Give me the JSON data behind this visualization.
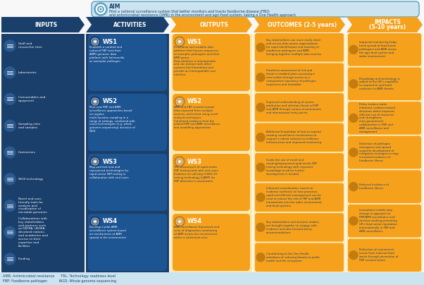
{
  "aim_text_line1": "Pilot a national surveillance system that better monitors and tracks foodborne disease (FBD)",
  "aim_text_line2": "and antimicrobial resistance (AMR) in the environment and agri-food system, taking a One Health approach",
  "col_titles": [
    "INPUTS",
    "ACTIVITIES",
    "OUTPUTS",
    "OUTCOMES (2-5 years)",
    "IMPACTS\n(5-10 years)"
  ],
  "col_colors_header": [
    "#1b3f6b",
    "#1b3f6b",
    "#f5a11c",
    "#f5a11c",
    "#f5a11c"
  ],
  "col_bg_colors": [
    "#1b3f6b",
    "#1b3f6b",
    "#fde9b0",
    "#fde9b0",
    "#fde9b0"
  ],
  "dark_blue": "#1b3f6b",
  "mid_blue": "#1e4d7b",
  "gold": "#f5a11c",
  "light_gold": "#fde9b0",
  "ws_blue": "#1b4f82",
  "ws_gold": "#f5a11c",
  "aim_bg": "#cce4f0",
  "aim_border": "#5b9fc0",
  "white": "#ffffff",
  "text_dark": "#1b3f6b",
  "inputs": [
    "Staff and\nresearcher time",
    "Laboratories",
    "Consumables and\nequipment",
    "Sampling sites\nand samples",
    "Contractors",
    "WGS technology",
    "Novel and user-\nfriendly tools for\nanalysis and\nvisualisation of\nmicrobial genomes",
    "Collaborations with\nkey stakeholders\nand partners such\nas DEFRA, UKHSA\ndevolved nations,\nand academics and\naccess to their\nexpertise and\nfacilities",
    "Funding"
  ],
  "activities": [
    {
      "ws": "WS1",
      "text": "Establish a curated and\nnational FBP (and their\nAMR) genomic data\nplatform with Salmonella\nas exemplar pathogen"
    },
    {
      "ws": "WS2",
      "text": "Pilot new FBP and AMR\nsurveillance approaches based\non regular,\nmulti-location sampling in a\nrange of settings, combined with\nnovel technologies (e.g. whole\ngenome sequencing) inclusive of\nWGS"
    },
    {
      "ws": "WS3",
      "text": "Map and test new and\nrepurposed technologies for\nrapid onsite FBP testing in\ncollaboration with end users"
    },
    {
      "ws": "WS4",
      "text": "Develop a pilot AMR\nsurveillance system based\non mechanisms of AMR\nspread in the environment"
    }
  ],
  "outputs": [
    {
      "ws": "WS1",
      "text": "Functional and scalable data\nplatform that houses sequences\nof exemplar pathogens and their\nAMR genes\nData platform is interoperable\nand can interact with other\nsystems like Enterobase and\nprovide an interrogatable user\ninterface"
    },
    {
      "ws": "WS2",
      "text": "AMR and FBP curated sample\ndata captured from multiple\nsources, and tested using novel\nanalysis techniques\nCombined evidence from the\npiloted FBP and AMR surveillance\nand modelling approaches"
    },
    {
      "ws": "WS3",
      "text": "TRL assessment of rapid onsite\nFBP testing tools with end users\nEvidence on utilising COVID-19\ntesting technology (LAMP) for\nFBP detection in wastewater"
    },
    {
      "ws": "WS4",
      "text": "AMR surveillance framework and\nsuite of diagnostics monitoring\nof AMR across the environment\nwithin a catchment area"
    }
  ],
  "outcomes": [
    "Key stakeholders can more easily share\nand access data across organisations\nfor rapid identification and tracking of\nfoodborne pathogens and AMR,\nbringing together multiple data sources",
    "Predictive assessment of risk and\nthreat is enabled when assessing a\nnew isolate through access to a\ncomparative repository of pathogen\nsequences and metadata",
    "Improved understanding of source\nattribution and infection threat of FBP\nand AMR through various environments\nand international entry points",
    "Additional knowledge of how to expand\nexisting surveillance mechanisms to\nsupport a robust national surveillance\ninfrastructure and improved monitoring",
    "Guide the use of novel and\nexisting/repurposed rapid onsite FBP\ntesting technology with improved\nknowledge of where further\ndevelopment is needed",
    "Informed consideration, based on\nevidence surfaced, on how proactive,\nrapid and efficient management can be\nused to reduce the risk of FBP and AMR\nintroduction into the wider environment\nand food systems",
    "Key stakeholders and decision makers\nare brought together to engage with\nevidence and take forward policy\nrecommendations",
    "Contributing to the One Health\nambitions of reducing threats to public\nhealth and the ecosystem"
  ],
  "impacts": [
    "Improved monitoring helps\ntrack spread of food borne\npathogens and AMR across\nthe agri-food system and\nwider environment",
    "Knowledge and technology is\nadded to the UK's capability\nto respond to and build\nresilience to AMR threats",
    "Policy makers make\ninformed, evidence-based\ndecisions which improves\nefficient use of resources\nand strengthens\ncross-government\ncollaboration in FBP and\nAMR surveillance and\nmanagement",
    "Detection of pathogen\nemergence and spread\nsupports development of\nmitigation strategies to stop\nincreased incidence of\nfoodborne illness",
    "Reduced incidence of\nfoodborne illness",
    "Innovations enable step\nchange in approach to\nFBP/AMR surveillance and\ndecision making promoting\nUK's food sector reputation\ninternationally in FBP and\nAMR surveillance",
    "Reduction of commercial\nlosses from reduced food\nwaste through prevention of\nFBP contamination"
  ],
  "footnote_left": "AMR: Antimicrobial resistance      TRL: Technology readiness level\nFBP: Foodborne pathogen           WGS: Whole genome sequencing"
}
